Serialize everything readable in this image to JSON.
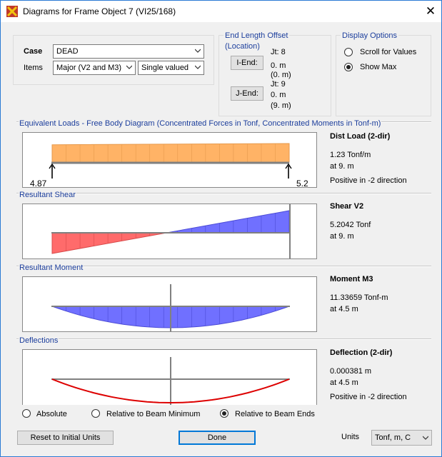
{
  "window": {
    "title": "Diagrams for Frame Object 7  (VI25/168)"
  },
  "case_group": {
    "case_label": "Case",
    "case_value": "DEAD",
    "items_label": "Items",
    "items_value": "Major (V2 and M3)",
    "valued_value": "Single valued"
  },
  "offset_group": {
    "title_line1": "End Length Offset",
    "title_line2": "(Location)",
    "iend_button": "I-End:",
    "jend_button": "J-End:",
    "i_jt": "Jt:  8",
    "i_len": "0. m",
    "i_loc": "(0. m)",
    "j_jt": "Jt:  9",
    "j_len": "0. m",
    "j_loc": "(9. m)"
  },
  "display_group": {
    "title": "Display Options",
    "scroll_label": "Scroll for Values",
    "showmax_label": "Show Max",
    "selected": "Show Max"
  },
  "loads": {
    "header": "Equivalent Loads - Free Body Diagram  (Concentrated Forces in Tonf, Concentrated Moments in Tonf-m)",
    "left_reaction": "4.87",
    "right_reaction": "5.2",
    "load_start": 1.15,
    "load_end": 1.23,
    "info_title": "Dist Load (2-dir)",
    "info_value": "1.23 Tonf/m",
    "info_at": "at 9. m",
    "info_note": "Positive in -2 direction",
    "fill_color": "#ffb366"
  },
  "shear": {
    "header": "Resultant Shear",
    "start_value": -4.87,
    "end_value": 5.2042,
    "info_title": "Shear V2",
    "info_value": "5.2042 Tonf",
    "info_at": "at 9. m",
    "neg_color": "#ff6b6b",
    "pos_color": "#7070ff"
  },
  "moment": {
    "header": "Resultant Moment",
    "max_value": 11.33659,
    "info_title": "Moment M3",
    "info_value": "11.33659 Tonf-m",
    "info_at": "at 4.5 m",
    "fill_color": "#7070ff"
  },
  "deflection": {
    "header": "Deflections",
    "max_value": 0.000381,
    "info_title": "Deflection (2-dir)",
    "info_value": "0.000381 m",
    "info_at": "at 4.5 m",
    "info_note": "Positive in -2 direction",
    "line_color": "#dd0000",
    "options": [
      "Absolute",
      "Relative to Beam Minimum",
      "Relative to Beam Ends"
    ],
    "selected": "Relative to Beam Ends"
  },
  "footer": {
    "reset_button": "Reset to Initial Units",
    "done_button": "Done",
    "units_label": "Units",
    "units_value": "Tonf, m, C"
  }
}
